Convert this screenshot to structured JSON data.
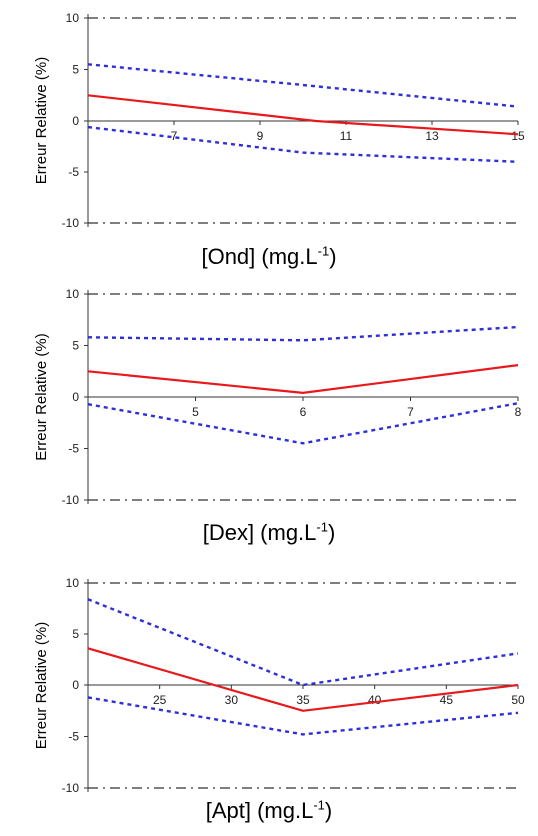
{
  "chart_data": [
    {
      "type": "line",
      "ylabel": "Erreur Relative (%)",
      "xlabel": {
        "main": "[Ond] (mg.L",
        "sup": "-1",
        "close": ")"
      },
      "xlim": [
        5,
        15
      ],
      "ylim": [
        -10,
        10
      ],
      "xticks": [
        7,
        9,
        11,
        13,
        15
      ],
      "yticks": [
        10,
        5,
        0,
        -5,
        -10
      ],
      "limits": [
        10,
        -10
      ],
      "series": [
        {
          "role": "bias",
          "color": "#e8191c",
          "style": "solid",
          "x": [
            5,
            10.3,
            15
          ],
          "y": [
            2.5,
            0.0,
            -1.3
          ]
        },
        {
          "role": "upper",
          "color": "#2f2fd6",
          "style": "dotted",
          "x": [
            5,
            10,
            15
          ],
          "y": [
            5.5,
            3.5,
            1.4
          ]
        },
        {
          "role": "lower",
          "color": "#2f2fd6",
          "style": "dotted",
          "x": [
            5,
            10,
            15
          ],
          "y": [
            -0.6,
            -3.1,
            -4.0
          ]
        }
      ]
    },
    {
      "type": "line",
      "ylabel": "Erreur Relative (%)",
      "xlabel": {
        "main": "[Dex] (mg.L",
        "sup": "-1",
        "close": ")"
      },
      "xlim": [
        4,
        8
      ],
      "ylim": [
        -10,
        10
      ],
      "xticks": [
        5,
        6,
        7,
        8
      ],
      "yticks": [
        10,
        5,
        0,
        -5,
        -10
      ],
      "limits": [
        10,
        -10
      ],
      "series": [
        {
          "role": "bias",
          "color": "#e8191c",
          "style": "solid",
          "x": [
            4,
            6,
            8
          ],
          "y": [
            2.5,
            0.4,
            3.1
          ]
        },
        {
          "role": "upper",
          "color": "#2f2fd6",
          "style": "dotted",
          "x": [
            4,
            6,
            8
          ],
          "y": [
            5.8,
            5.5,
            6.8
          ]
        },
        {
          "role": "lower",
          "color": "#2f2fd6",
          "style": "dotted",
          "x": [
            4,
            6,
            8
          ],
          "y": [
            -0.7,
            -4.5,
            -0.6
          ]
        }
      ]
    },
    {
      "type": "line",
      "ylabel": "Erreur Relative (%)",
      "xlabel": {
        "main": "[Apt] (mg.L",
        "sup": "-1",
        "close": ")"
      },
      "xlim": [
        20,
        50
      ],
      "ylim": [
        -10,
        10
      ],
      "xticks": [
        25,
        30,
        35,
        40,
        45,
        50
      ],
      "yticks": [
        10,
        5,
        0,
        -5,
        -10
      ],
      "limits": [
        10,
        -10
      ],
      "series": [
        {
          "role": "bias",
          "color": "#e8191c",
          "style": "solid",
          "x": [
            20,
            35,
            50
          ],
          "y": [
            3.6,
            -2.5,
            0.0
          ]
        },
        {
          "role": "upper",
          "color": "#2f2fd6",
          "style": "dotted",
          "x": [
            20,
            35,
            50
          ],
          "y": [
            8.4,
            0.0,
            3.1
          ]
        },
        {
          "role": "lower",
          "color": "#2f2fd6",
          "style": "dotted",
          "x": [
            20,
            35,
            50
          ],
          "y": [
            -1.2,
            -4.8,
            -2.7
          ]
        }
      ]
    }
  ]
}
